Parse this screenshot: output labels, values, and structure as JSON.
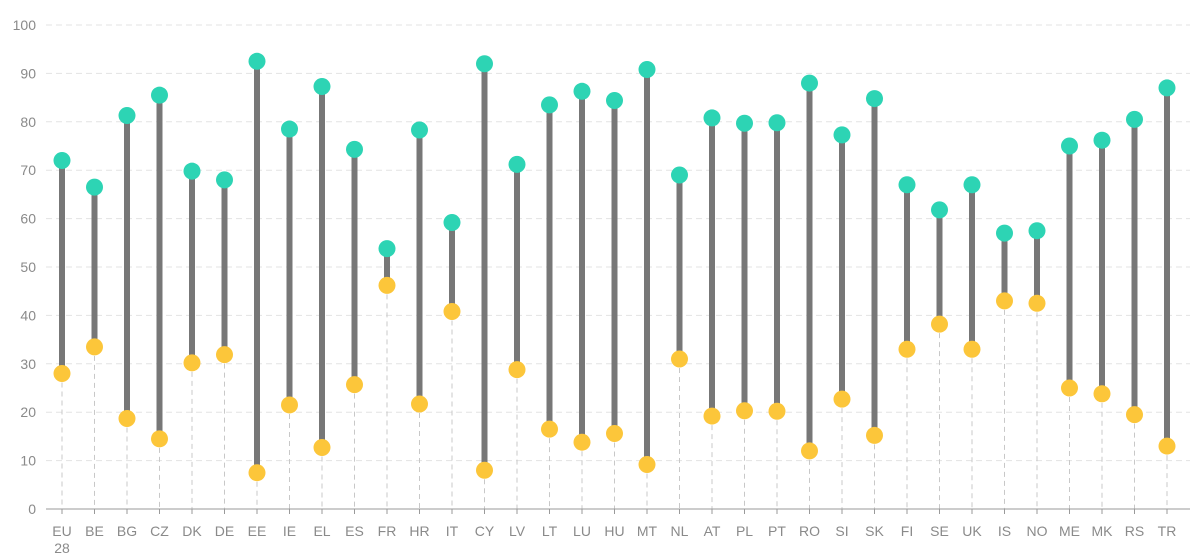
{
  "chart_data": {
    "type": "dumbbell",
    "ylim": [
      0,
      100
    ],
    "yticks": [
      0,
      10,
      20,
      30,
      40,
      50,
      60,
      70,
      80,
      90,
      100
    ],
    "grid": true,
    "categories": [
      [
        "EU",
        "28"
      ],
      [
        "BE"
      ],
      [
        "BG"
      ],
      [
        "CZ"
      ],
      [
        "DK"
      ],
      [
        "DE"
      ],
      [
        "EE"
      ],
      [
        "IE"
      ],
      [
        "EL"
      ],
      [
        "ES"
      ],
      [
        "FR"
      ],
      [
        "HR"
      ],
      [
        "IT"
      ],
      [
        "CY"
      ],
      [
        "LV"
      ],
      [
        "LT"
      ],
      [
        "LU"
      ],
      [
        "HU"
      ],
      [
        "MT"
      ],
      [
        "NL"
      ],
      [
        "AT"
      ],
      [
        "PL"
      ],
      [
        "PT"
      ],
      [
        "RO"
      ],
      [
        "SI"
      ],
      [
        "SK"
      ],
      [
        "FI"
      ],
      [
        "SE"
      ],
      [
        "UK"
      ],
      [
        "IS"
      ],
      [
        "NO"
      ],
      [
        "ME"
      ],
      [
        "MK"
      ],
      [
        "RS"
      ],
      [
        "TR"
      ]
    ],
    "series": [
      {
        "color": "#2dd4b4",
        "values": [
          72,
          66.5,
          81.3,
          85.5,
          69.8,
          68,
          92.5,
          78.5,
          87.3,
          74.3,
          53.8,
          78.3,
          59.2,
          92,
          71.2,
          83.5,
          86.3,
          84.4,
          90.8,
          69,
          80.8,
          79.7,
          79.8,
          88,
          77.3,
          84.8,
          67,
          61.8,
          67,
          57,
          57.5,
          75,
          76.2,
          80.5,
          87
        ]
      },
      {
        "color": "#fcc63a",
        "values": [
          28,
          33.5,
          18.7,
          14.5,
          30.2,
          31.9,
          7.5,
          21.5,
          12.7,
          25.7,
          46.2,
          21.7,
          40.8,
          8,
          28.8,
          16.5,
          13.8,
          15.6,
          9.2,
          31,
          19.2,
          20.3,
          20.2,
          12,
          22.7,
          15.2,
          33,
          38.2,
          33,
          43,
          42.5,
          25,
          23.8,
          19.5,
          13
        ]
      }
    ],
    "colors": {
      "connector": "#777777",
      "grid": "#e3e3e3",
      "dashed": "#c8c8c8",
      "axis": "#9a9a9a"
    }
  }
}
